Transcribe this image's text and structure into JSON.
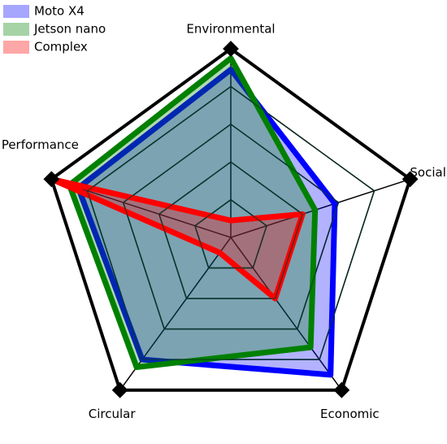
{
  "chart_data": {
    "type": "radar",
    "categories": [
      "Environmental",
      "Social",
      "Economic",
      "Circular",
      "Performance"
    ],
    "rlim": [
      0,
      1
    ],
    "rticks": [
      0.2,
      0.4,
      0.6,
      0.8,
      1.0
    ],
    "legend": "upper left",
    "series": [
      {
        "name": "Moto X4",
        "color": "#0000ff",
        "values": [
          0.89,
          0.58,
          0.9,
          0.8,
          0.85
        ]
      },
      {
        "name": "Jetson nano",
        "color": "#008000",
        "values": [
          0.95,
          0.47,
          0.72,
          0.85,
          0.9
        ]
      },
      {
        "name": "Complex",
        "color": "#ff0000",
        "values": [
          0.09,
          0.4,
          0.4,
          0.1,
          1.0
        ]
      }
    ]
  }
}
